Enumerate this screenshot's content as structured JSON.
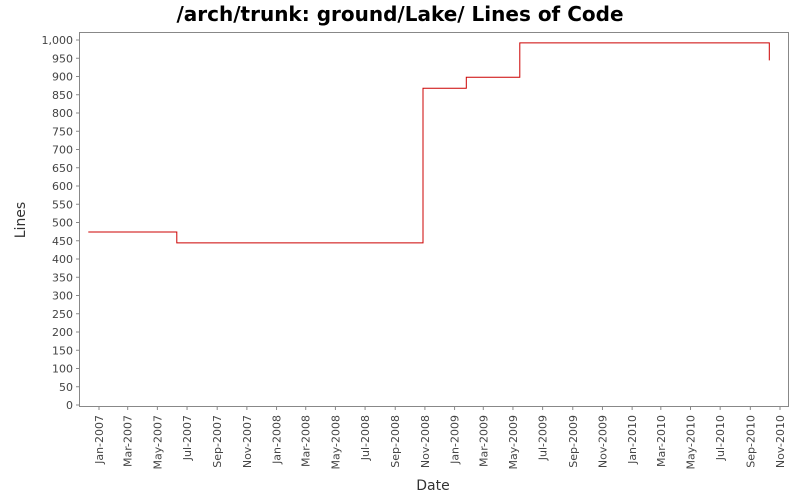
{
  "chart_data": {
    "type": "line",
    "title": "/arch/trunk: ground/Lake/ Lines of Code",
    "xlabel": "Date",
    "ylabel": "Lines",
    "ylim": [
      0,
      1000
    ],
    "y_ticks": [
      "0",
      "50",
      "100",
      "150",
      "200",
      "250",
      "300",
      "350",
      "400",
      "450",
      "500",
      "550",
      "600",
      "650",
      "700",
      "750",
      "800",
      "850",
      "900",
      "950",
      "1,000"
    ],
    "x_ticks": [
      "Jan-2007",
      "Mar-2007",
      "May-2007",
      "Jul-2007",
      "Sep-2007",
      "Nov-2007",
      "Jan-2008",
      "Mar-2008",
      "May-2008",
      "Jul-2008",
      "Sep-2008",
      "Nov-2008",
      "Jan-2009",
      "Mar-2009",
      "May-2009",
      "Jul-2009",
      "Sep-2009",
      "Nov-2009",
      "Jan-2010",
      "Mar-2010",
      "May-2010",
      "Jul-2010",
      "Sep-2010",
      "Nov-2010"
    ],
    "grid": false,
    "step": true,
    "series": [
      {
        "color": "#cc0000",
        "points": [
          {
            "x": "2006-12-10",
            "y": 474
          },
          {
            "x": "2007-06-10",
            "y": 474
          },
          {
            "x": "2007-06-10",
            "y": 444
          },
          {
            "x": "2008-10-28",
            "y": 444
          },
          {
            "x": "2008-10-28",
            "y": 868
          },
          {
            "x": "2009-01-25",
            "y": 868
          },
          {
            "x": "2009-01-25",
            "y": 898
          },
          {
            "x": "2009-05-15",
            "y": 898
          },
          {
            "x": "2009-05-15",
            "y": 992
          },
          {
            "x": "2010-10-10",
            "y": 992
          },
          {
            "x": "2010-10-10",
            "y": 944
          }
        ]
      }
    ]
  }
}
